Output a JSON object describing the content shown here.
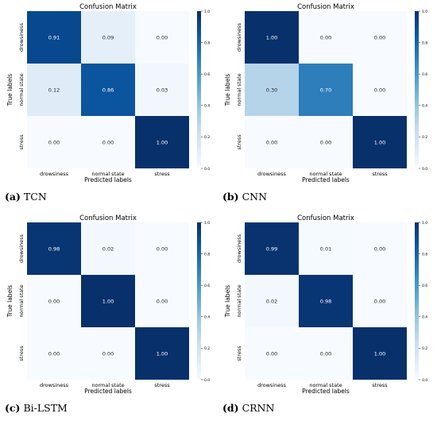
{
  "chart_data": [
    {
      "type": "heatmap",
      "title": "Confusion Matrix",
      "xlabel": "Predicted labels",
      "ylabel": "True labels",
      "x_categories": [
        "drowsiness",
        "normal state",
        "stress"
      ],
      "y_categories": [
        "drowsiness",
        "normal state",
        "stress"
      ],
      "values": [
        [
          0.91,
          0.09,
          0.0
        ],
        [
          0.12,
          0.86,
          0.03
        ],
        [
          0.0,
          0.0,
          1.0
        ]
      ],
      "colorbar": {
        "range": [
          0.0,
          1.0
        ],
        "ticks": [
          "0.0",
          "0.2",
          "0.4",
          "0.6",
          "0.8",
          "1.0"
        ]
      },
      "colormap": "Blues",
      "caption_label": "(a)",
      "caption_text": "TCN"
    },
    {
      "type": "heatmap",
      "title": "Confusion Matrix",
      "xlabel": "Predicted labels",
      "ylabel": "True labels",
      "x_categories": [
        "drowsiness",
        "normal state",
        "stress"
      ],
      "y_categories": [
        "drowsiness",
        "normal state",
        "stress"
      ],
      "values": [
        [
          1.0,
          0.0,
          0.0
        ],
        [
          0.3,
          0.7,
          0.0
        ],
        [
          0.0,
          0.0,
          1.0
        ]
      ],
      "colorbar": {
        "range": [
          0.0,
          1.0
        ],
        "ticks": [
          "0.0",
          "0.2",
          "0.4",
          "0.6",
          "0.8",
          "1.0"
        ]
      },
      "colormap": "Blues",
      "caption_label": "(b)",
      "caption_text": "CNN"
    },
    {
      "type": "heatmap",
      "title": "Confusion Matrix",
      "xlabel": "Predicted labels",
      "ylabel": "True labels",
      "x_categories": [
        "drowsiness",
        "normal state",
        "stress"
      ],
      "y_categories": [
        "drowsiness",
        "normal state",
        "stress"
      ],
      "values": [
        [
          0.98,
          0.02,
          0.0
        ],
        [
          0.0,
          1.0,
          0.0
        ],
        [
          0.0,
          0.0,
          1.0
        ]
      ],
      "colorbar": {
        "range": [
          0.0,
          1.0
        ],
        "ticks": [
          "0.0",
          "0.2",
          "0.4",
          "0.6",
          "0.8",
          "1.0"
        ]
      },
      "colormap": "Blues",
      "caption_label": "(c)",
      "caption_text": "Bi-LSTM"
    },
    {
      "type": "heatmap",
      "title": "Confusion Matrix",
      "xlabel": "Predicted labels",
      "ylabel": "True labels",
      "x_categories": [
        "drowsiness",
        "normal state",
        "stress"
      ],
      "y_categories": [
        "drowsiness",
        "normal state",
        "stress"
      ],
      "values": [
        [
          0.99,
          0.01,
          0.0
        ],
        [
          0.02,
          0.98,
          0.0
        ],
        [
          0.0,
          0.0,
          1.0
        ]
      ],
      "colorbar": {
        "range": [
          0.0,
          1.0
        ],
        "ticks": [
          "0.0",
          "0.2",
          "0.4",
          "0.6",
          "0.8",
          "1.0"
        ]
      },
      "colormap": "Blues",
      "caption_label": "(d)",
      "caption_text": "CRNN"
    }
  ]
}
